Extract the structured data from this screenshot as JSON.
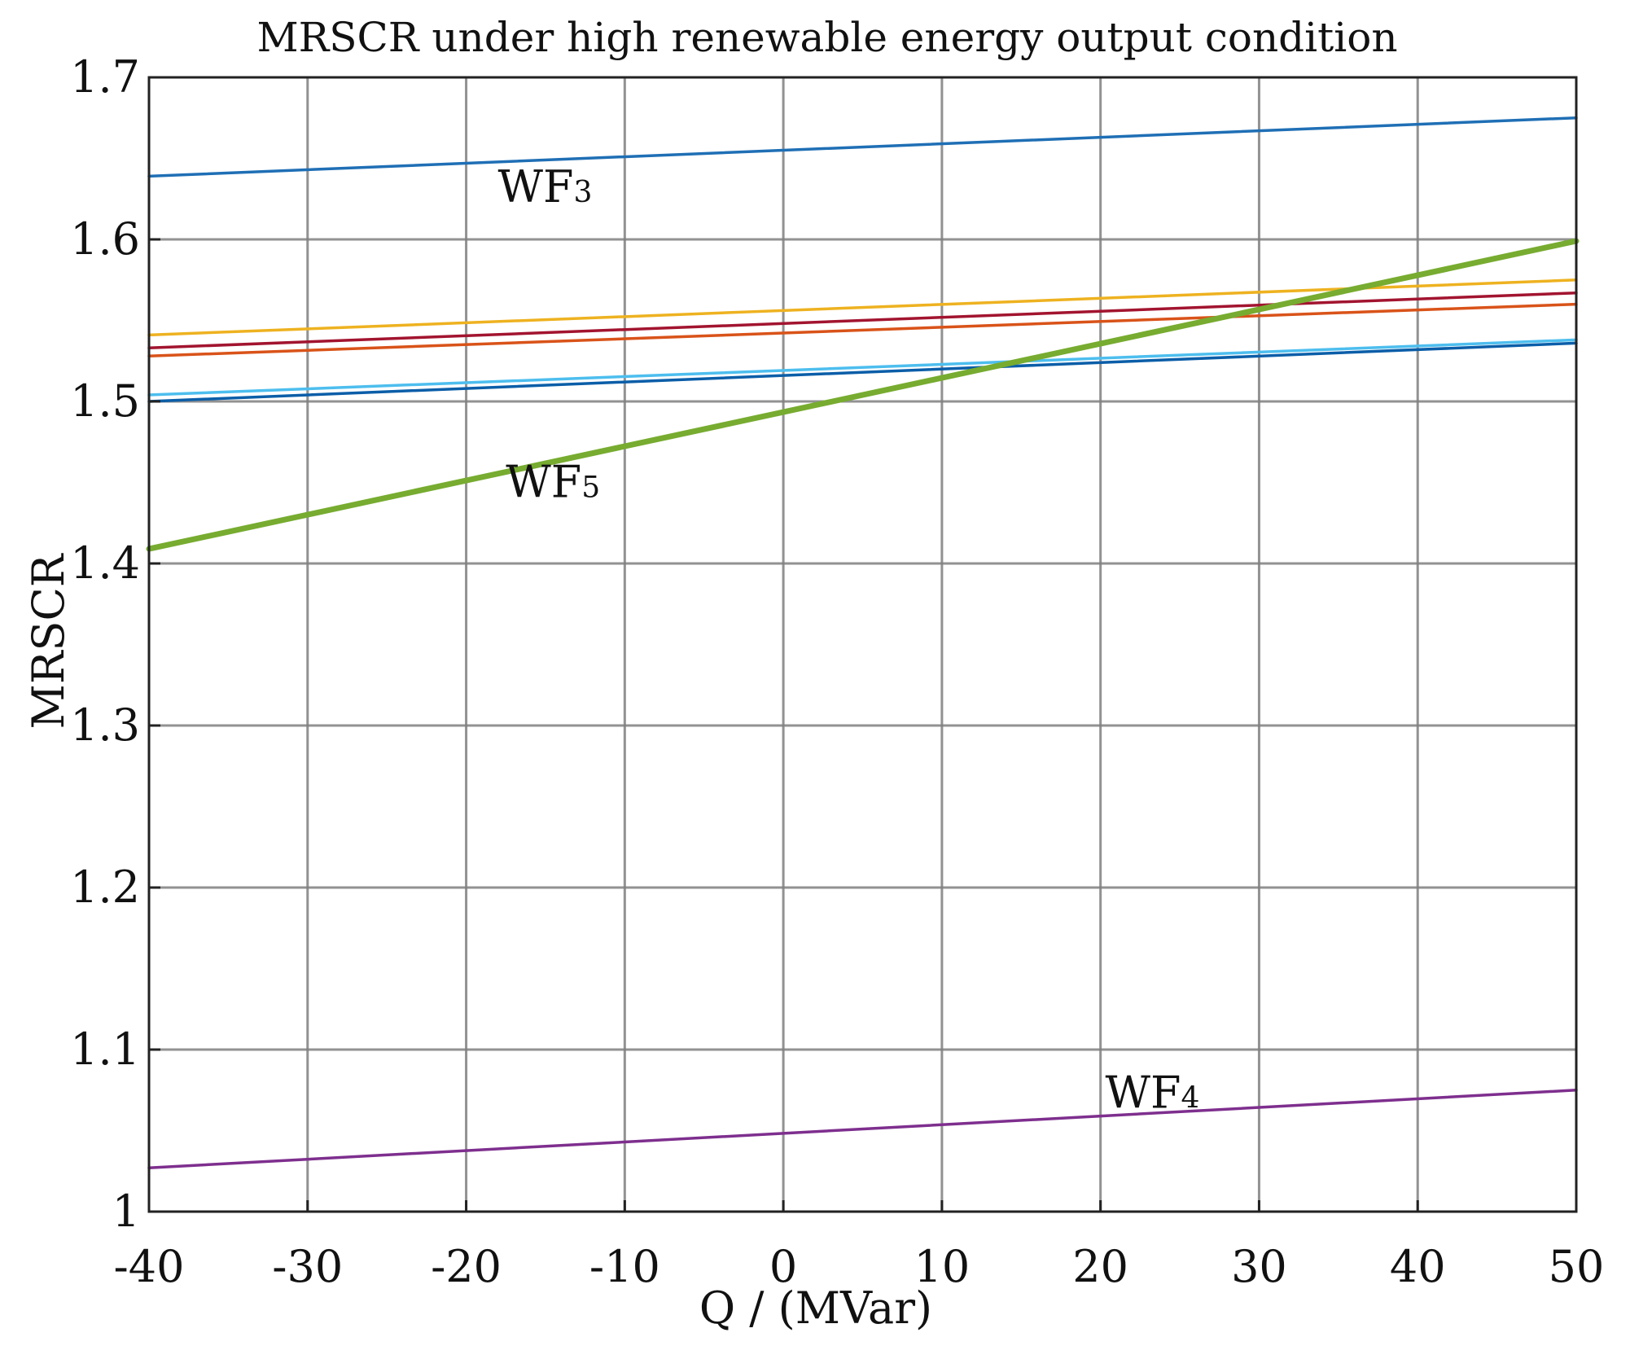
{
  "chart_data": {
    "type": "line",
    "title": "MRSCR under high renewable energy output condition",
    "xlabel": "Q / (MVar)",
    "ylabel": "MRSCR",
    "xlim": [
      -40,
      50
    ],
    "ylim": [
      1,
      1.7
    ],
    "xticks": [
      -40,
      -30,
      -20,
      -10,
      0,
      10,
      20,
      30,
      40,
      50
    ],
    "yticks": [
      1,
      1.1,
      1.2,
      1.3,
      1.4,
      1.5,
      1.6,
      1.7
    ],
    "xtick_labels": [
      "-40",
      "-30",
      "-20",
      "-10",
      "0",
      "10",
      "20",
      "30",
      "40",
      "50"
    ],
    "ytick_labels": [
      "1",
      "1.1",
      "1.2",
      "1.3",
      "1.4",
      "1.5",
      "1.6",
      "1.7"
    ],
    "grid": true,
    "series": [
      {
        "name": "WF3",
        "label_base": "WF",
        "label_sub": "3",
        "color": "#1f6fb5",
        "width": "thin",
        "x": [
          -40,
          50
        ],
        "y": [
          1.639,
          1.675
        ]
      },
      {
        "name": "series-yellow",
        "color": "#eeb220",
        "width": "thin",
        "x": [
          -40,
          50
        ],
        "y": [
          1.541,
          1.575
        ]
      },
      {
        "name": "series-darkred",
        "color": "#a2142f",
        "width": "thin",
        "x": [
          -40,
          50
        ],
        "y": [
          1.533,
          1.567
        ]
      },
      {
        "name": "series-orange",
        "color": "#d95319",
        "width": "thin",
        "x": [
          -40,
          50
        ],
        "y": [
          1.528,
          1.56
        ]
      },
      {
        "name": "series-lightblue",
        "color": "#4dbeee",
        "width": "thin",
        "x": [
          -40,
          50
        ],
        "y": [
          1.504,
          1.538
        ]
      },
      {
        "name": "series-blue",
        "color": "#0b5ea8",
        "width": "thin",
        "x": [
          -40,
          50
        ],
        "y": [
          1.5,
          1.536
        ]
      },
      {
        "name": "WF5",
        "label_base": "WF",
        "label_sub": "5",
        "color": "#77ac30",
        "width": "thick",
        "x": [
          -40,
          50
        ],
        "y": [
          1.409,
          1.599
        ]
      },
      {
        "name": "WF4",
        "label_base": "WF",
        "label_sub": "4",
        "color": "#7e2f8e",
        "width": "thin",
        "x": [
          -40,
          50
        ],
        "y": [
          1.027,
          1.075
        ]
      }
    ],
    "annotations": [
      {
        "series": "WF3",
        "base": "WF",
        "sub": "3",
        "x": -18,
        "y": 1.623
      },
      {
        "series": "WF5",
        "base": "WF",
        "sub": "5",
        "x": -17.5,
        "y": 1.441
      },
      {
        "series": "WF4",
        "base": "WF",
        "sub": "4",
        "x": 20.3,
        "y": 1.064
      }
    ]
  }
}
